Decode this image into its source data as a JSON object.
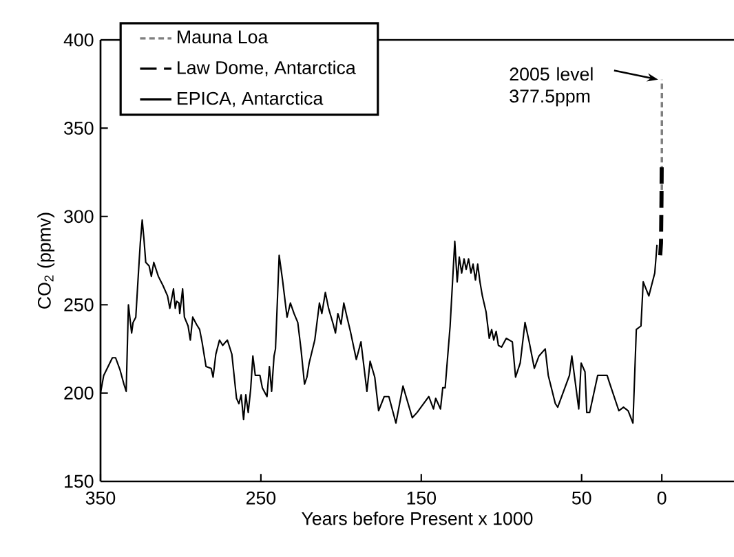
{
  "chart_data": {
    "type": "line",
    "xlabel": "Years before Present x 1000",
    "ylabel": "CO$_{2}$ (ppmv)",
    "xlim": [
      350,
      -45
    ],
    "ylim": [
      150,
      400
    ],
    "xticks": [
      350,
      250,
      150,
      50,
      0
    ],
    "yticks": [
      150,
      200,
      250,
      300,
      350,
      400
    ],
    "legend": "top left",
    "grid": false,
    "series": [
      {
        "name": "Mauna Loa",
        "color": "#7f7f7f",
        "line_style": "dotted",
        "x": [
          -0.008,
          -0.055
        ],
        "values": [
          315,
          377.5
        ]
      },
      {
        "name": "Law Dome, Antarctica",
        "color": "#000000",
        "line_style": "dashed",
        "x": [
          1.0,
          0.5,
          0.2,
          0.05
        ],
        "values": [
          278,
          285,
          310,
          331
        ]
      },
      {
        "name": "EPICA, Antarctica",
        "color": "#000000",
        "line_style": "solid",
        "x": [
          350,
          348,
          342.6,
          340.6,
          337.8,
          335.4,
          334,
          332.6,
          330.6,
          329.7,
          328,
          326.3,
          325.2,
          324,
          322.9,
          321.8,
          319.7,
          318.3,
          316.8,
          313.9,
          311.1,
          308.2,
          306.8,
          304.5,
          303.4,
          302.5,
          301.1,
          300.6,
          298.8,
          297.7,
          295.4,
          294,
          292.5,
          290.2,
          288.2,
          286.7,
          284.2,
          281,
          279.8,
          278.1,
          275.8,
          273.8,
          270.9,
          268.1,
          265.2,
          263.7,
          262.3,
          260.8,
          259.4,
          257.9,
          256.4,
          255,
          253.5,
          250.6,
          249.1,
          246.2,
          244.7,
          243.3,
          241.8,
          240.9,
          238.6,
          236.5,
          233.7,
          231.6,
          229.3,
          227,
          225,
          222.8,
          221.3,
          219.9,
          216.4,
          213.5,
          212,
          209.8,
          207.8,
          204.9,
          203.5,
          202,
          200,
          198.3,
          196.3,
          194.2,
          190.5,
          187.6,
          183.9,
          181.9,
          179,
          176.6,
          173.1,
          170.2,
          165.8,
          161.4,
          155.6,
          152.6,
          145.3,
          142.4,
          141,
          138,
          136.6,
          135.1,
          132,
          129.1,
          127.6,
          126.3,
          124.8,
          123.3,
          122,
          120.5,
          119,
          117.7,
          116.2,
          114.8,
          113.4,
          111.9,
          109.6,
          107.6,
          106.1,
          104.8,
          103.3,
          101.9,
          99.9,
          97,
          93.2,
          91.2,
          88.3,
          85.3,
          82.7,
          79.5,
          76.6,
          72.7,
          70.8,
          66.4,
          64.9,
          57.6,
          56.1,
          51.8,
          50.3,
          47.9,
          46.8,
          45,
          40,
          34.1,
          32.7,
          26.8,
          23.9,
          21,
          18,
          15.9,
          13,
          11.6,
          8.1,
          4.4,
          3
        ],
        "values": [
          200,
          210,
          220,
          220,
          213,
          205,
          201,
          250,
          234,
          240,
          243,
          269,
          285,
          298,
          287,
          274,
          272,
          266,
          274,
          266,
          261,
          255,
          248,
          259,
          248,
          252,
          251,
          245,
          259,
          243,
          238,
          230,
          243,
          239,
          236,
          229,
          215,
          214,
          209,
          222,
          230,
          227,
          230,
          222,
          197,
          194,
          199,
          185,
          199,
          189,
          202,
          221,
          210,
          210,
          203,
          198,
          215,
          201,
          221,
          225,
          278,
          264,
          243,
          251,
          245,
          240,
          225,
          205,
          209,
          217,
          230,
          251,
          245,
          257,
          248,
          239,
          234,
          245,
          239,
          251,
          243,
          235,
          219,
          229,
          201,
          218,
          209,
          190,
          198,
          198,
          183,
          204,
          186,
          189,
          198,
          191,
          197,
          191,
          203,
          203,
          238,
          286,
          263,
          277,
          268,
          276,
          270,
          276,
          268,
          273,
          264,
          273,
          263,
          255,
          246,
          231,
          236,
          230,
          235,
          227,
          226,
          231,
          229,
          209,
          217,
          240,
          229,
          214,
          221,
          225,
          210,
          194,
          192,
          210,
          221,
          191,
          217,
          212,
          189,
          189,
          210,
          210,
          206,
          190,
          192,
          190,
          183,
          236,
          238,
          263,
          255,
          268,
          284
        ]
      }
    ],
    "annotations": [
      {
        "text": "2005 level 377.5ppm",
        "x": 0,
        "y": 377.5
      }
    ]
  }
}
